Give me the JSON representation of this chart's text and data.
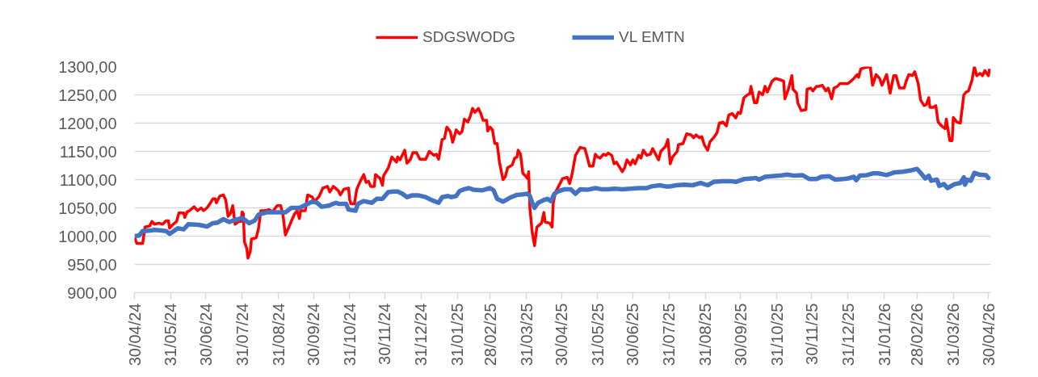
{
  "chart_data": {
    "type": "line",
    "legend": "top",
    "grid": "y",
    "xlim": [
      "2024-04-30",
      "2026-05-02"
    ],
    "xticks": [
      {
        "value": "2024-04-30",
        "label": "30/04/24"
      },
      {
        "value": "2024-05-31",
        "label": "31/05/24"
      },
      {
        "value": "2024-06-30",
        "label": "30/06/24"
      },
      {
        "value": "2024-07-31",
        "label": "31/07/24"
      },
      {
        "value": "2024-08-31",
        "label": "31/08/24"
      },
      {
        "value": "2024-09-30",
        "label": "30/09/24"
      },
      {
        "value": "2024-10-31",
        "label": "31/10/24"
      },
      {
        "value": "2024-11-30",
        "label": "30/11/24"
      },
      {
        "value": "2024-12-31",
        "label": "31/12/24"
      },
      {
        "value": "2025-01-31",
        "label": "31/01/25"
      },
      {
        "value": "2025-02-28",
        "label": "28/02/25"
      },
      {
        "value": "2025-03-31",
        "label": "31/03/25"
      },
      {
        "value": "2025-04-30",
        "label": "30/04/25"
      },
      {
        "value": "2025-05-31",
        "label": "31/05/25"
      },
      {
        "value": "2025-06-30",
        "label": "30/06/25"
      },
      {
        "value": "2025-07-31",
        "label": "31/07/25"
      },
      {
        "value": "2025-08-31",
        "label": "31/08/25"
      },
      {
        "value": "2025-09-30",
        "label": "30/09/25"
      },
      {
        "value": "2025-10-31",
        "label": "31/10/25"
      },
      {
        "value": "2025-11-30",
        "label": "30/11/25"
      },
      {
        "value": "2025-12-31",
        "label": "31/12/25"
      },
      {
        "value": "2026-01-31",
        "label": "31/01/26"
      },
      {
        "value": "2026-02-28",
        "label": "28/02/26"
      },
      {
        "value": "2026-03-31",
        "label": "31/03/26"
      },
      {
        "value": "2026-04-30",
        "label": "30/04/26"
      }
    ],
    "ylim": [
      900,
      1300
    ],
    "yticks": [
      {
        "value": 900,
        "label": "900,00"
      },
      {
        "value": 950,
        "label": "950,00"
      },
      {
        "value": 1000,
        "label": "1000,00"
      },
      {
        "value": 1050,
        "label": "1050,00"
      },
      {
        "value": 1100,
        "label": "1100,00"
      },
      {
        "value": 1150,
        "label": "1150,00"
      },
      {
        "value": 1200,
        "label": "1200,00"
      },
      {
        "value": 1250,
        "label": "1250,00"
      },
      {
        "value": 1300,
        "label": "1300,00"
      }
    ],
    "series": [
      {
        "name": "SDGSWODG",
        "color": "#ff0000",
        "x": [
          "2024-04-30",
          "2024-05-02",
          "2024-05-07",
          "2024-05-09",
          "2024-05-13",
          "2024-05-15",
          "2024-05-17",
          "2024-05-21",
          "2024-05-24",
          "2024-05-27",
          "2024-05-29",
          "2024-05-30",
          "2024-06-02",
          "2024-06-05",
          "2024-06-07",
          "2024-06-11",
          "2024-06-12",
          "2024-06-14",
          "2024-06-16",
          "2024-06-20",
          "2024-06-23",
          "2024-06-26",
          "2024-06-28",
          "2024-07-01",
          "2024-07-04",
          "2024-07-06",
          "2024-07-08",
          "2024-07-09",
          "2024-07-12",
          "2024-07-15",
          "2024-07-17",
          "2024-07-19",
          "2024-07-21",
          "2024-07-23",
          "2024-07-25",
          "2024-07-28",
          "2024-07-30",
          "2024-07-31",
          "2024-08-01",
          "2024-08-02",
          "2024-08-04",
          "2024-08-05",
          "2024-08-07",
          "2024-08-08",
          "2024-08-12",
          "2024-08-14",
          "2024-08-16",
          "2024-08-20",
          "2024-08-23",
          "2024-08-26",
          "2024-08-30",
          "2024-09-02",
          "2024-09-04",
          "2024-09-06",
          "2024-09-09",
          "2024-09-11",
          "2024-09-14",
          "2024-09-16",
          "2024-09-18",
          "2024-09-19",
          "2024-09-23",
          "2024-09-25",
          "2024-09-29",
          "2024-10-01",
          "2024-10-05",
          "2024-10-08",
          "2024-10-12",
          "2024-10-14",
          "2024-10-17",
          "2024-10-21",
          "2024-10-23",
          "2024-10-26",
          "2024-10-30",
          "2024-10-31",
          "2024-11-01",
          "2024-11-04",
          "2024-11-06",
          "2024-11-09",
          "2024-11-12",
          "2024-11-14",
          "2024-11-16",
          "2024-11-18",
          "2024-11-21",
          "2024-11-22",
          "2024-11-26",
          "2024-11-28",
          "2024-11-29",
          "2024-12-03",
          "2024-12-06",
          "2024-12-10",
          "2024-12-11",
          "2024-12-13",
          "2024-12-17",
          "2024-12-19",
          "2024-12-22",
          "2024-12-24",
          "2024-12-27",
          "2024-12-30",
          "2025-01-04",
          "2025-01-07",
          "2025-01-11",
          "2025-01-13",
          "2025-01-15",
          "2025-01-18",
          "2025-01-20",
          "2025-01-22",
          "2025-01-25",
          "2025-01-27",
          "2025-01-30",
          "2025-02-02",
          "2025-02-04",
          "2025-02-06",
          "2025-02-09",
          "2025-02-11",
          "2025-02-13",
          "2025-02-15",
          "2025-02-18",
          "2025-02-20",
          "2025-02-22",
          "2025-02-25",
          "2025-02-26",
          "2025-02-28",
          "2025-03-02",
          "2025-03-04",
          "2025-03-06",
          "2025-03-08",
          "2025-03-11",
          "2025-03-13",
          "2025-03-15",
          "2025-03-19",
          "2025-03-21",
          "2025-03-23",
          "2025-03-24",
          "2025-03-26",
          "2025-03-28",
          "2025-03-30",
          "2025-04-01",
          "2025-04-02",
          "2025-04-03",
          "2025-04-05",
          "2025-04-07",
          "2025-04-09",
          "2025-04-13",
          "2025-04-15",
          "2025-04-16",
          "2025-04-20",
          "2025-04-22",
          "2025-04-23",
          "2025-04-25",
          "2025-05-01",
          "2025-05-05",
          "2025-05-07",
          "2025-05-09",
          "2025-05-12",
          "2025-05-16",
          "2025-05-20",
          "2025-05-22",
          "2025-05-24",
          "2025-05-27",
          "2025-05-29",
          "2025-05-31",
          "2025-06-02",
          "2025-06-05",
          "2025-06-07",
          "2025-06-09",
          "2025-06-12",
          "2025-06-14",
          "2025-06-16",
          "2025-06-19",
          "2025-06-21",
          "2025-06-23",
          "2025-06-25",
          "2025-06-28",
          "2025-06-30",
          "2025-07-02",
          "2025-07-05",
          "2025-07-07",
          "2025-07-09",
          "2025-07-12",
          "2025-07-15",
          "2025-07-17",
          "2025-07-20",
          "2025-07-22",
          "2025-07-24",
          "2025-07-28",
          "2025-07-30",
          "2025-08-01",
          "2025-08-03",
          "2025-08-07",
          "2025-08-08",
          "2025-08-12",
          "2025-08-15",
          "2025-08-19",
          "2025-08-21",
          "2025-08-23",
          "2025-08-26",
          "2025-08-28",
          "2025-08-30",
          "2025-09-02",
          "2025-09-04",
          "2025-09-07",
          "2025-09-10",
          "2025-09-12",
          "2025-09-15",
          "2025-09-18",
          "2025-09-20",
          "2025-09-23",
          "2025-09-26",
          "2025-09-28",
          "2025-09-30",
          "2025-10-03",
          "2025-10-06",
          "2025-10-08",
          "2025-10-09",
          "2025-10-12",
          "2025-10-14",
          "2025-10-16",
          "2025-10-19",
          "2025-10-21",
          "2025-10-23",
          "2025-10-27",
          "2025-10-30",
          "2025-11-04",
          "2025-11-06",
          "2025-11-07",
          "2025-11-10",
          "2025-11-13",
          "2025-11-14",
          "2025-11-17",
          "2025-11-18",
          "2025-11-21",
          "2025-11-25",
          "2025-11-26",
          "2025-11-29",
          "2025-12-01",
          "2025-12-04",
          "2025-12-06",
          "2025-12-09",
          "2025-12-12",
          "2025-12-14",
          "2025-12-17",
          "2025-12-19",
          "2025-12-22",
          "2025-12-24",
          "2025-12-28",
          "2025-12-31",
          "2026-01-04",
          "2026-01-08",
          "2026-01-09",
          "2026-01-11",
          "2026-01-14",
          "2026-01-19",
          "2026-01-21",
          "2026-01-24",
          "2026-01-27",
          "2026-01-29",
          "2026-02-02",
          "2026-02-05",
          "2026-02-08",
          "2026-02-10",
          "2026-02-13",
          "2026-02-17",
          "2026-02-19",
          "2026-02-21",
          "2026-02-24",
          "2026-02-26",
          "2026-03-01",
          "2026-03-03",
          "2026-03-06",
          "2026-03-08",
          "2026-03-10",
          "2026-03-11",
          "2026-03-14",
          "2026-03-16",
          "2026-03-18",
          "2026-03-21",
          "2026-03-24",
          "2026-03-25",
          "2026-03-28",
          "2026-03-30",
          "2026-03-31",
          "2026-04-03",
          "2026-04-06",
          "2026-04-09",
          "2026-04-11",
          "2026-04-13",
          "2026-04-16",
          "2026-04-18",
          "2026-04-20",
          "2026-04-23",
          "2026-04-25",
          "2026-04-27",
          "2026-04-30",
          "2026-05-01"
        ],
        "values": [
          998,
          987,
          987,
          1016,
          1018,
          1026,
          1021,
          1023,
          1021,
          1027,
          1027,
          1014,
          1021,
          1026,
          1041,
          1041,
          1033,
          1043,
          1045,
          1052,
          1045,
          1050,
          1045,
          1050,
          1059,
          1066,
          1066,
          1059,
          1071,
          1073,
          1064,
          1035,
          1040,
          1054,
          1021,
          1026,
          1026,
          1043,
          1040,
          990,
          978,
          961,
          973,
          995,
          997,
          1013,
          1045,
          1045,
          1047,
          1043,
          1054,
          1054,
          1037,
          1002,
          1016,
          1026,
          1040,
          1045,
          1031,
          1045,
          1045,
          1073,
          1069,
          1061,
          1071,
          1085,
          1088,
          1078,
          1088,
          1081,
          1073,
          1083,
          1085,
          1064,
          1057,
          1057,
          1083,
          1097,
          1109,
          1095,
          1097,
          1088,
          1088,
          1109,
          1102,
          1090,
          1107,
          1121,
          1140,
          1131,
          1140,
          1135,
          1152,
          1129,
          1136,
          1148,
          1148,
          1136,
          1136,
          1150,
          1143,
          1145,
          1136,
          1171,
          1173,
          1193,
          1185,
          1166,
          1188,
          1181,
          1185,
          1207,
          1202,
          1212,
          1226,
          1219,
          1226,
          1217,
          1205,
          1205,
          1186,
          1193,
          1188,
          1164,
          1164,
          1131,
          1100,
          1105,
          1121,
          1126,
          1138,
          1140,
          1152,
          1145,
          1111,
          1107,
          1102,
          1114,
          1050,
          1007,
          983,
          1016,
          1023,
          1042,
          1025,
          1023,
          1016,
          1059,
          1078,
          1102,
          1104,
          1093,
          1109,
          1143,
          1157,
          1155,
          1140,
          1124,
          1124,
          1145,
          1140,
          1138,
          1145,
          1143,
          1147,
          1143,
          1128,
          1131,
          1121,
          1114,
          1121,
          1135,
          1126,
          1135,
          1128,
          1143,
          1138,
          1152,
          1143,
          1145,
          1155,
          1143,
          1135,
          1150,
          1159,
          1171,
          1128,
          1140,
          1150,
          1162,
          1164,
          1181,
          1179,
          1174,
          1179,
          1174,
          1176,
          1162,
          1152,
          1167,
          1174,
          1183,
          1200,
          1202,
          1195,
          1214,
          1217,
          1209,
          1219,
          1217,
          1245,
          1250,
          1252,
          1265,
          1236,
          1236,
          1255,
          1250,
          1265,
          1255,
          1274,
          1279,
          1276,
          1274,
          1243,
          1260,
          1284,
          1260,
          1253,
          1236,
          1222,
          1224,
          1260,
          1262,
          1257,
          1265,
          1265,
          1267,
          1257,
          1262,
          1243,
          1262,
          1265,
          1270,
          1270,
          1270,
          1277,
          1286,
          1281,
          1296,
          1298,
          1300,
          1267,
          1286,
          1279,
          1267,
          1286,
          1253,
          1284,
          1284,
          1262,
          1262,
          1276,
          1286,
          1284,
          1291,
          1270,
          1241,
          1231,
          1233,
          1245,
          1228,
          1228,
          1231,
          1202,
          1195,
          1190,
          1207,
          1169,
          1169,
          1210,
          1202,
          1200,
          1250,
          1255,
          1257,
          1276,
          1300,
          1284,
          1288,
          1284,
          1293,
          1284,
          1296
        ]
      },
      {
        "name": "VL EMTN",
        "color": "#4472c4",
        "x": [
          "2024-04-30",
          "2024-05-04",
          "2024-05-07",
          "2024-05-14",
          "2024-05-17",
          "2024-05-23",
          "2024-05-27",
          "2024-05-30",
          "2024-06-06",
          "2024-06-11",
          "2024-06-15",
          "2024-06-24",
          "2024-07-01",
          "2024-07-06",
          "2024-07-10",
          "2024-07-15",
          "2024-07-20",
          "2024-07-24",
          "2024-07-31",
          "2024-08-04",
          "2024-08-06",
          "2024-08-11",
          "2024-08-14",
          "2024-08-21",
          "2024-08-30",
          "2024-09-06",
          "2024-09-11",
          "2024-09-18",
          "2024-09-22",
          "2024-09-29",
          "2024-10-03",
          "2024-10-07",
          "2024-10-13",
          "2024-10-19",
          "2024-10-22",
          "2024-10-28",
          "2024-10-30",
          "2024-11-05",
          "2024-11-07",
          "2024-11-12",
          "2024-11-19",
          "2024-11-23",
          "2024-11-28",
          "2024-12-03",
          "2024-12-07",
          "2024-12-11",
          "2024-12-15",
          "2024-12-19",
          "2024-12-23",
          "2024-12-29",
          "2025-01-04",
          "2025-01-10",
          "2025-01-15",
          "2025-01-18",
          "2025-01-23",
          "2025-01-26",
          "2025-01-30",
          "2025-02-02",
          "2025-02-06",
          "2025-02-10",
          "2025-02-14",
          "2025-02-21",
          "2025-02-28",
          "2025-03-03",
          "2025-03-06",
          "2025-03-11",
          "2025-03-18",
          "2025-03-23",
          "2025-03-28",
          "2025-04-01",
          "2025-04-03",
          "2025-04-05",
          "2025-04-07",
          "2025-04-10",
          "2025-04-15",
          "2025-04-18",
          "2025-04-21",
          "2025-04-24",
          "2025-04-28",
          "2025-05-03",
          "2025-05-08",
          "2025-05-12",
          "2025-05-16",
          "2025-05-22",
          "2025-05-29",
          "2025-06-03",
          "2025-06-09",
          "2025-06-14",
          "2025-06-21",
          "2025-06-28",
          "2025-07-05",
          "2025-07-12",
          "2025-07-16",
          "2025-07-23",
          "2025-07-28",
          "2025-08-01",
          "2025-08-06",
          "2025-08-13",
          "2025-08-20",
          "2025-08-27",
          "2025-09-02",
          "2025-09-07",
          "2025-09-14",
          "2025-09-23",
          "2025-09-26",
          "2025-10-03",
          "2025-10-10",
          "2025-10-13",
          "2025-10-16",
          "2025-10-21",
          "2025-10-27",
          "2025-11-02",
          "2025-11-09",
          "2025-11-15",
          "2025-11-22",
          "2025-11-28",
          "2025-12-04",
          "2025-12-08",
          "2025-12-15",
          "2025-12-20",
          "2025-12-27",
          "2025-12-31",
          "2026-01-05",
          "2026-01-07",
          "2026-01-10",
          "2026-01-16",
          "2026-01-21",
          "2026-01-26",
          "2026-02-02",
          "2026-02-09",
          "2026-02-16",
          "2026-02-22",
          "2026-02-28",
          "2026-03-03",
          "2026-03-07",
          "2026-03-10",
          "2026-03-12",
          "2026-03-17",
          "2026-03-19",
          "2026-03-23",
          "2026-03-26",
          "2026-04-01",
          "2026-04-06",
          "2026-04-09",
          "2026-04-10",
          "2026-04-12",
          "2026-04-15",
          "2026-04-18",
          "2026-04-22",
          "2026-04-28",
          "2026-04-30",
          "2026-05-01"
        ],
        "values": [
          1000,
          1001,
          1009,
          1010,
          1011,
          1010,
          1009,
          1004,
          1014,
          1012,
          1021,
          1020,
          1017,
          1023,
          1024,
          1030,
          1025,
          1028,
          1032,
          1026,
          1023,
          1028,
          1038,
          1042,
          1042,
          1042,
          1050,
          1050,
          1054,
          1061,
          1059,
          1052,
          1054,
          1059,
          1057,
          1057,
          1047,
          1045,
          1057,
          1062,
          1059,
          1066,
          1066,
          1078,
          1079,
          1079,
          1075,
          1069,
          1072,
          1072,
          1069,
          1063,
          1059,
          1069,
          1071,
          1069,
          1071,
          1080,
          1083,
          1085,
          1082,
          1081,
          1085,
          1081,
          1066,
          1061,
          1069,
          1073,
          1074,
          1075,
          1071,
          1059,
          1050,
          1059,
          1064,
          1066,
          1062,
          1075,
          1080,
          1083,
          1083,
          1075,
          1083,
          1082,
          1085,
          1083,
          1083,
          1084,
          1083,
          1084,
          1085,
          1085,
          1088,
          1090,
          1088,
          1088,
          1090,
          1091,
          1090,
          1094,
          1090,
          1096,
          1097,
          1097,
          1096,
          1101,
          1102,
          1103,
          1100,
          1105,
          1106,
          1107,
          1109,
          1107,
          1108,
          1101,
          1101,
          1105,
          1106,
          1100,
          1101,
          1102,
          1105,
          1099,
          1107,
          1108,
          1111,
          1111,
          1108,
          1113,
          1114,
          1116,
          1119,
          1112,
          1102,
          1107,
          1098,
          1100,
          1089,
          1092,
          1085,
          1092,
          1094,
          1104,
          1091,
          1100,
          1098,
          1112,
          1109,
          1108,
          1103,
          1106
        ]
      }
    ]
  }
}
